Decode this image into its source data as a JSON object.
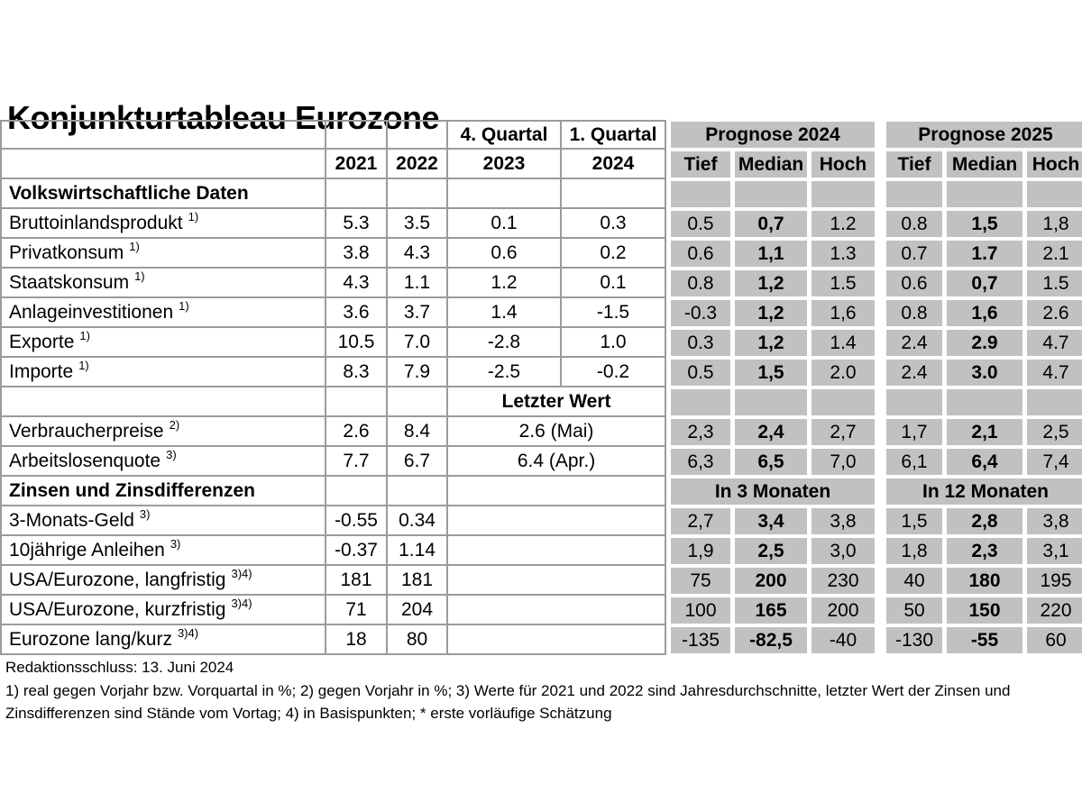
{
  "title": "Konjunkturtableau Eurozone",
  "colors": {
    "cell_gray": "#c1c1c1",
    "grid_line": "#9b9b9b",
    "text": "#000000",
    "page_bg": "#ffffff"
  },
  "footer": {
    "deadline": "Redaktionsschluss: 13. Juni 2024",
    "notes": "1) real gegen Vorjahr bzw. Vorquartal in %; 2) gegen Vorjahr in %; 3) Werte für 2021  und 2022 sind Jahresdurchschnitte, letzter Wert der Zinsen und Zinsdifferenzen sind Stände vom Vortag; 4) in Basispunkten; * erste vorläufige Schätzung"
  },
  "table": {
    "column_semantics": [
      "label",
      "2021",
      "2022",
      "4. Quartal 2023",
      "1. Quartal 2024",
      "Prognose 2024 Tief",
      "Prognose 2024 Median",
      "Prognose 2024 Hoch",
      "Prognose 2025 Tief",
      "Prognose 2025 Median",
      "Prognose 2025 Hoch"
    ],
    "rows": [
      {
        "label": "",
        "sup": "",
        "y1": "",
        "y2": "",
        "q_mode": "split",
        "q1": "4. Quartal",
        "q2": "1. Quartal",
        "q_bold": true,
        "g_mode": "merged",
        "g_left": "Prognose 2024",
        "g_right": "Prognose 2025"
      },
      {
        "label": "",
        "sup": "",
        "y1": "2021",
        "y2": "2022",
        "num_bold": true,
        "q_mode": "split",
        "q1": "2023",
        "q2": "2024",
        "q_bold": true,
        "g_mode": "cells",
        "g": [
          "Tief",
          "Median",
          "Hoch",
          "Tief",
          "Median",
          "Hoch"
        ],
        "g_bold": "all"
      },
      {
        "label": "Volkswirtschaftliche Daten",
        "sup": "",
        "label_bold": true,
        "y1": "",
        "y2": "",
        "q_mode": "split",
        "q1": "",
        "q2": "",
        "g_mode": "cells",
        "g": [
          "",
          "",
          "",
          "",
          "",
          ""
        ],
        "g_bold": "none"
      },
      {
        "label": "Bruttoinlandsprodukt",
        "sup": "1)",
        "y1": "5.3",
        "y2": "3.5",
        "q_mode": "split",
        "q1": "0.1",
        "q2": "0.3",
        "g_mode": "cells",
        "g": [
          "0.5",
          "0,7",
          "1.2",
          "0.8",
          "1,5",
          "1,8"
        ],
        "g_bold": "median"
      },
      {
        "label": "Privatkonsum",
        "sup": "1)",
        "y1": "3.8",
        "y2": "4.3",
        "q_mode": "split",
        "q1": "0.6",
        "q2": "0.2",
        "g_mode": "cells",
        "g": [
          "0.6",
          "1,1",
          "1.3",
          "0.7",
          "1.7",
          "2.1"
        ],
        "g_bold": "median"
      },
      {
        "label": "Staatskonsum",
        "sup": "1)",
        "y1": "4.3",
        "y2": "1.1",
        "q_mode": "split",
        "q1": "1.2",
        "q2": "0.1",
        "g_mode": "cells",
        "g": [
          "0.8",
          "1,2",
          "1.5",
          "0.6",
          "0,7",
          "1.5"
        ],
        "g_bold": "median"
      },
      {
        "label": "Anlageinvestitionen",
        "sup": "1)",
        "y1": "3.6",
        "y2": "3.7",
        "q_mode": "split",
        "q1": "1.4",
        "q2": "-1.5",
        "g_mode": "cells",
        "g": [
          "-0.3",
          "1,2",
          "1,6",
          "0.8",
          "1,6",
          "2.6"
        ],
        "g_bold": "median"
      },
      {
        "label": "Exporte",
        "sup": "1)",
        "y1": "10.5",
        "y2": "7.0",
        "q_mode": "split",
        "q1": "-2.8",
        "q2": "1.0",
        "g_mode": "cells",
        "g": [
          "0.3",
          "1,2",
          "1.4",
          "2.4",
          "2.9",
          "4.7"
        ],
        "g_bold": "median"
      },
      {
        "label": "Importe",
        "sup": "1)",
        "y1": "8.3",
        "y2": "7.9",
        "q_mode": "split",
        "q1": "-2.5",
        "q2": "-0.2",
        "g_mode": "cells",
        "g": [
          "0.5",
          "1,5",
          "2.0",
          "2.4",
          "3.0",
          "4.7"
        ],
        "g_bold": "median"
      },
      {
        "label": "",
        "sup": "",
        "y1": "",
        "y2": "",
        "q_mode": "merged",
        "q_text": "Letzter Wert",
        "q_bold": true,
        "g_mode": "cells",
        "g": [
          "",
          "",
          "",
          "",
          "",
          ""
        ],
        "g_bold": "none"
      },
      {
        "label": "Verbraucherpreise",
        "sup": "2)",
        "y1": "2.6",
        "y2": "8.4",
        "q_mode": "merged",
        "q_text": "2.6 (Mai)",
        "g_mode": "cells",
        "g": [
          "2,3",
          "2,4",
          "2,7",
          "1,7",
          "2,1",
          "2,5"
        ],
        "g_bold": "median"
      },
      {
        "label": "Arbeitslosenquote",
        "sup": "3)",
        "y1": "7.7",
        "y2": "6.7",
        "q_mode": "merged",
        "q_text": "6.4 (Apr.)",
        "g_mode": "cells",
        "g": [
          "6,3",
          "6,5",
          "7,0",
          "6,1",
          "6,4",
          "7,4"
        ],
        "g_bold": "median"
      },
      {
        "label": "Zinsen und Zinsdifferenzen",
        "sup": "",
        "label_bold": true,
        "y1": "",
        "y2": "",
        "q_mode": "merged",
        "q_text": "",
        "g_mode": "merged",
        "g_left": "In 3 Monaten",
        "g_right": "In 12 Monaten"
      },
      {
        "label": "3-Monats-Geld",
        "sup": "3)",
        "y1": "-0.55",
        "y2": "0.34",
        "q_mode": "merged",
        "q_text": "",
        "g_mode": "cells",
        "g": [
          "2,7",
          "3,4",
          "3,8",
          "1,5",
          "2,8",
          "3,8"
        ],
        "g_bold": "median"
      },
      {
        "label": "10jährige Anleihen",
        "sup": "3)",
        "y1": "-0.37",
        "y2": "1.14",
        "q_mode": "merged",
        "q_text": "",
        "g_mode": "cells",
        "g": [
          "1,9",
          "2,5",
          "3,0",
          "1,8",
          "2,3",
          "3,1"
        ],
        "g_bold": "median"
      },
      {
        "label": "USA/Eurozone, langfristig",
        "sup": "3)4)",
        "y1": "181",
        "y2": "181",
        "q_mode": "merged",
        "q_text": "",
        "g_mode": "cells",
        "g": [
          "75",
          "200",
          "230",
          "40",
          "180",
          "195"
        ],
        "g_bold": "median"
      },
      {
        "label": "USA/Eurozone, kurzfristig",
        "sup": "3)4)",
        "y1": "71",
        "y2": "204",
        "q_mode": "merged",
        "q_text": "",
        "g_mode": "cells",
        "g": [
          "100",
          "165",
          "200",
          "50",
          "150",
          "220"
        ],
        "g_bold": "median"
      },
      {
        "label": "Eurozone lang/kurz",
        "sup": "3)4)",
        "y1": "18",
        "y2": "80",
        "q_mode": "merged",
        "q_text": "",
        "g_mode": "cells",
        "g": [
          "-135",
          "-82,5",
          "-40",
          "-130",
          "-55",
          "60"
        ],
        "g_bold": "median"
      }
    ]
  }
}
